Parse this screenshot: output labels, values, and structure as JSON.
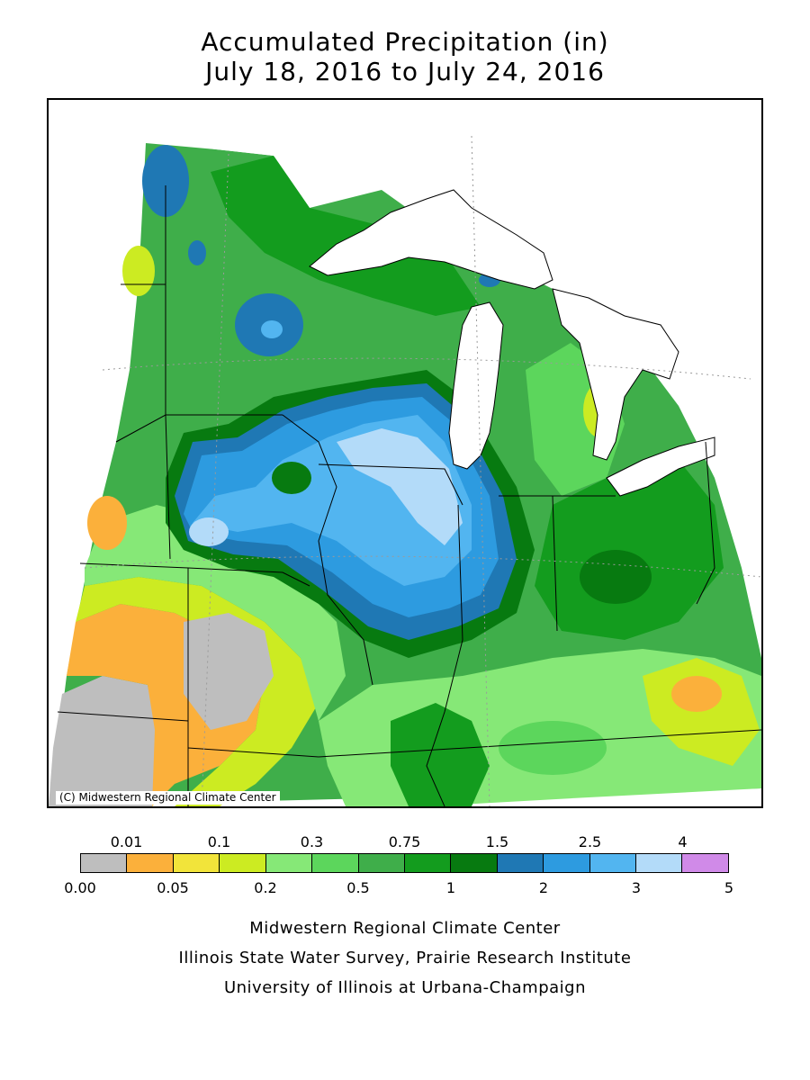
{
  "title": {
    "line1": "Accumulated Precipitation (in)",
    "line2": "July 18, 2016 to July 24, 2016"
  },
  "map": {
    "copyright": "(C) Midwestern Regional Climate Center",
    "region": "Midwestern United States",
    "zones": [
      {
        "name": "central-heavy-band",
        "class": "2.5-3"
      },
      {
        "name": "wisconsin-core",
        "class": "3-4"
      },
      {
        "name": "lower-michigan-yellow",
        "class": "0.1-0.2"
      },
      {
        "name": "southwest-dry",
        "class": "0.00-0.01"
      }
    ]
  },
  "legend": {
    "top_labels": [
      "0.01",
      "0.1",
      "0.3",
      "0.75",
      "1.5",
      "2.5",
      "4"
    ],
    "bottom_labels": [
      "0.00",
      "0.05",
      "0.2",
      "0.5",
      "1",
      "2",
      "3",
      "5"
    ],
    "colors": [
      "#bebebe",
      "#fbb03b",
      "#f2e43a",
      "#cceb22",
      "#86e877",
      "#5cd65c",
      "#3fae4a",
      "#139c1e",
      "#077a10",
      "#1f78b4",
      "#2d9be0",
      "#52b5f0",
      "#b3dbf9",
      "#d08ae8"
    ]
  },
  "footer": {
    "line1": "Midwestern Regional Climate Center",
    "line2": "Illinois State Water Survey, Prairie Research Institute",
    "line3": "University of Illinois at Urbana-Champaign"
  }
}
